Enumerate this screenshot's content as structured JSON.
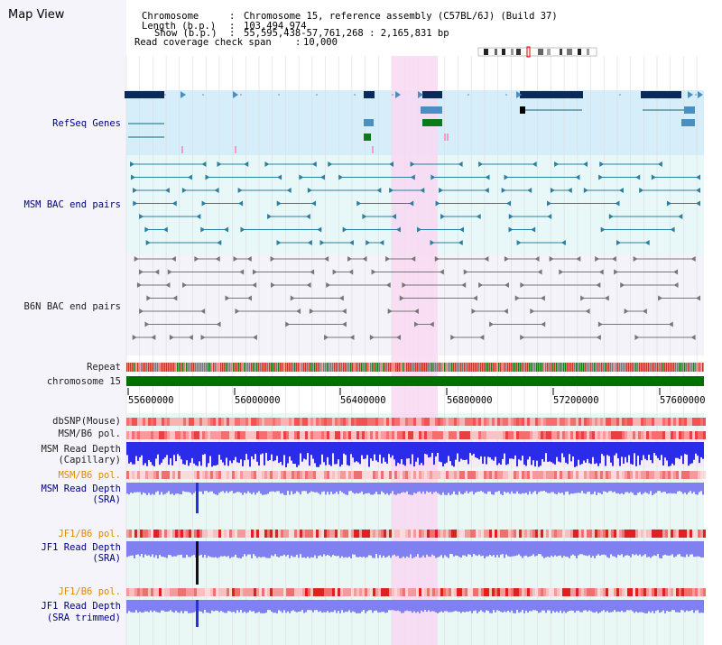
{
  "title": "Map View",
  "header": {
    "chromosome_label": "Chromosome",
    "chromosome_value": "Chromosome 15, reference assembly (C57BL/6J) (Build 37)",
    "length_label": "Length (b.p.)",
    "length_value": "103,494,974",
    "show_label": "Show (b.p.)",
    "show_value": "55,595,438-57,761,268 : 2,165,831 bp",
    "span_label": "Read coverage check span",
    "span_value": "10,000"
  },
  "tracks": {
    "refseq": "RefSeq Genes",
    "msm_bac": "MSM BAC end pairs",
    "b6n_bac": "B6N BAC end pairs",
    "repeat": "Repeat",
    "chromosome": "chromosome 15",
    "dbsnp": "dbSNP(Mouse)",
    "msm_b6_pol_1": "MSM/B6 pol.",
    "msm_read_depth_cap_1": "MSM Read Depth",
    "msm_read_depth_cap_2": "(Capillary)",
    "msm_b6_pol_2": "MSM/B6 pol.",
    "msm_read_depth_sra_1": "MSM Read Depth",
    "msm_read_depth_sra_2": "(SRA)",
    "jf1_b6_pol_1": "JF1/B6 pol.",
    "jf1_read_depth_1": "JF1 Read Depth",
    "jf1_read_depth_2": "(SRA)",
    "jf1_b6_pol_2": "JF1/B6 pol.",
    "jf1_read_depth_trim_1": "JF1 Read Depth",
    "jf1_read_depth_trim_2": "(SRA trimmed)"
  },
  "axis": {
    "ticks": [
      "55600000",
      "56000000",
      "56400000",
      "56800000",
      "57200000",
      "57600000"
    ]
  },
  "colors": {
    "refseq_bg": "#d6eefa",
    "bac_bg": "#e8f8f8",
    "highlight": "#f8d8f2",
    "gene_dark": "#0a2a5a",
    "gene_light": "#4a8fc0",
    "gene_green": "#0a7a1a",
    "chromosome_bar": "#007000",
    "label_navy": "#000080",
    "label_orange": "#e08a00",
    "depth_blue": "#2b2bea",
    "depth_light": "#8080f0"
  }
}
